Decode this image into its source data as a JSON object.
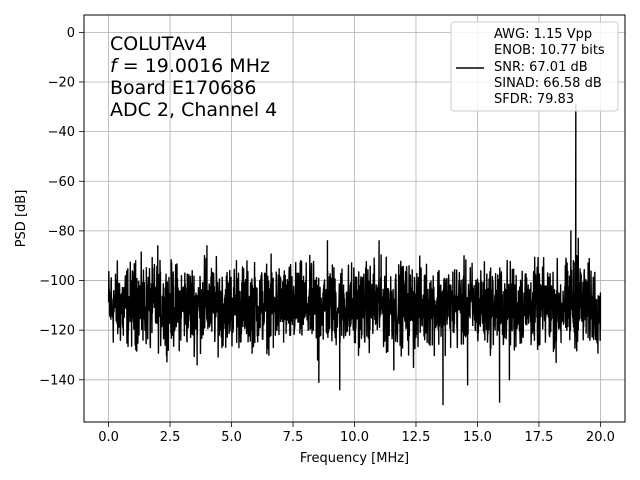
{
  "chart_data": {
    "type": "line",
    "title": "",
    "xlabel": "Frequency [MHz]",
    "ylabel": "PSD [dB]",
    "xlim": [
      -1.0,
      21.0
    ],
    "ylim": [
      -157,
      7
    ],
    "xticks": [
      0.0,
      2.5,
      5.0,
      7.5,
      10.0,
      12.5,
      15.0,
      17.5,
      20.0
    ],
    "xtick_labels": [
      "0.0",
      "2.5",
      "5.0",
      "7.5",
      "10.0",
      "12.5",
      "15.0",
      "17.5",
      "20.0"
    ],
    "yticks": [
      0,
      -20,
      -40,
      -60,
      -80,
      -100,
      -120,
      -140
    ],
    "ytick_labels": [
      "0",
      "−20",
      "−40",
      "−60",
      "−80",
      "−100",
      "−120",
      "−140"
    ],
    "grid": true,
    "line_color": "#000000",
    "annotation": {
      "line1": "COLUTAv4",
      "line2_var": "f",
      "line2_rest": " = 19.0016 MHz",
      "line3": "Board E170686",
      "line4": "ADC 2, Channel 4"
    },
    "legend": {
      "placement": "top-right",
      "entries": [
        "AWG: 1.15 Vpp",
        "ENOB: 10.77 bits",
        "SNR: 67.01 dB",
        "SINAD: 66.58 dB",
        "SFDR: 79.83"
      ]
    },
    "series": [
      {
        "noise_floor_db": -110,
        "noise_spread_db": 8,
        "points": [
          [
            0.0,
            -107
          ],
          [
            0.05,
            -110
          ],
          [
            0.1,
            -100
          ],
          [
            0.15,
            -112
          ],
          [
            0.5,
            -118
          ],
          [
            0.6,
            -122
          ],
          [
            1.0,
            -104
          ],
          [
            1.05,
            -96
          ],
          [
            1.1,
            -92
          ],
          [
            1.2,
            -110
          ],
          [
            1.4,
            -124
          ],
          [
            1.7,
            -127
          ],
          [
            2.0,
            -86
          ],
          [
            2.05,
            -112
          ],
          [
            2.3,
            -126
          ],
          [
            2.6,
            -122
          ],
          [
            3.0,
            -103
          ],
          [
            3.1,
            -97
          ],
          [
            3.5,
            -113
          ],
          [
            3.6,
            -134
          ],
          [
            3.9,
            -90
          ],
          [
            4.0,
            -86
          ],
          [
            4.05,
            -112
          ],
          [
            4.4,
            -104
          ],
          [
            4.5,
            -122
          ],
          [
            4.8,
            -105
          ],
          [
            5.0,
            -113
          ],
          [
            5.2,
            -92
          ],
          [
            5.5,
            -116
          ],
          [
            6.0,
            -103
          ],
          [
            6.5,
            -119
          ],
          [
            6.7,
            -127
          ],
          [
            7.0,
            -99
          ],
          [
            7.4,
            -122
          ],
          [
            7.6,
            -103
          ],
          [
            8.0,
            -113
          ],
          [
            8.5,
            -132
          ],
          [
            8.55,
            -141
          ],
          [
            8.9,
            -84
          ],
          [
            8.95,
            -112
          ],
          [
            9.2,
            -121
          ],
          [
            9.4,
            -144
          ],
          [
            9.8,
            -122
          ],
          [
            10.0,
            -125
          ],
          [
            10.2,
            -127
          ],
          [
            10.5,
            -117
          ],
          [
            10.8,
            -91
          ],
          [
            11.0,
            -84
          ],
          [
            11.05,
            -113
          ],
          [
            11.2,
            -119
          ],
          [
            11.3,
            -129
          ],
          [
            11.6,
            -136
          ],
          [
            12.0,
            -105
          ],
          [
            12.2,
            -130
          ],
          [
            12.4,
            -135
          ],
          [
            12.5,
            -119
          ],
          [
            12.9,
            -103
          ],
          [
            13.3,
            -119
          ],
          [
            13.5,
            -102
          ],
          [
            13.6,
            -150
          ],
          [
            13.7,
            -115
          ],
          [
            14.0,
            -109
          ],
          [
            14.5,
            -120
          ],
          [
            14.6,
            -142
          ],
          [
            14.7,
            -115
          ],
          [
            15.0,
            -121
          ],
          [
            15.3,
            -124
          ],
          [
            15.5,
            -116
          ],
          [
            15.8,
            -122
          ],
          [
            15.9,
            -149
          ],
          [
            16.0,
            -114
          ],
          [
            16.3,
            -140
          ],
          [
            16.5,
            -128
          ],
          [
            17.0,
            -99
          ],
          [
            17.3,
            -122
          ],
          [
            17.5,
            -126
          ],
          [
            17.8,
            -110
          ],
          [
            18.0,
            -116
          ],
          [
            18.2,
            -133
          ],
          [
            18.4,
            -125
          ],
          [
            18.5,
            -107
          ],
          [
            18.6,
            -91
          ],
          [
            18.7,
            -103
          ],
          [
            18.8,
            -80
          ],
          [
            18.9,
            -92
          ],
          [
            19.0,
            -29
          ],
          [
            19.05,
            -90
          ],
          [
            19.1,
            -83
          ],
          [
            19.2,
            -97
          ],
          [
            19.5,
            -123
          ],
          [
            19.8,
            -110
          ],
          [
            20.0,
            -105
          ]
        ]
      }
    ]
  }
}
